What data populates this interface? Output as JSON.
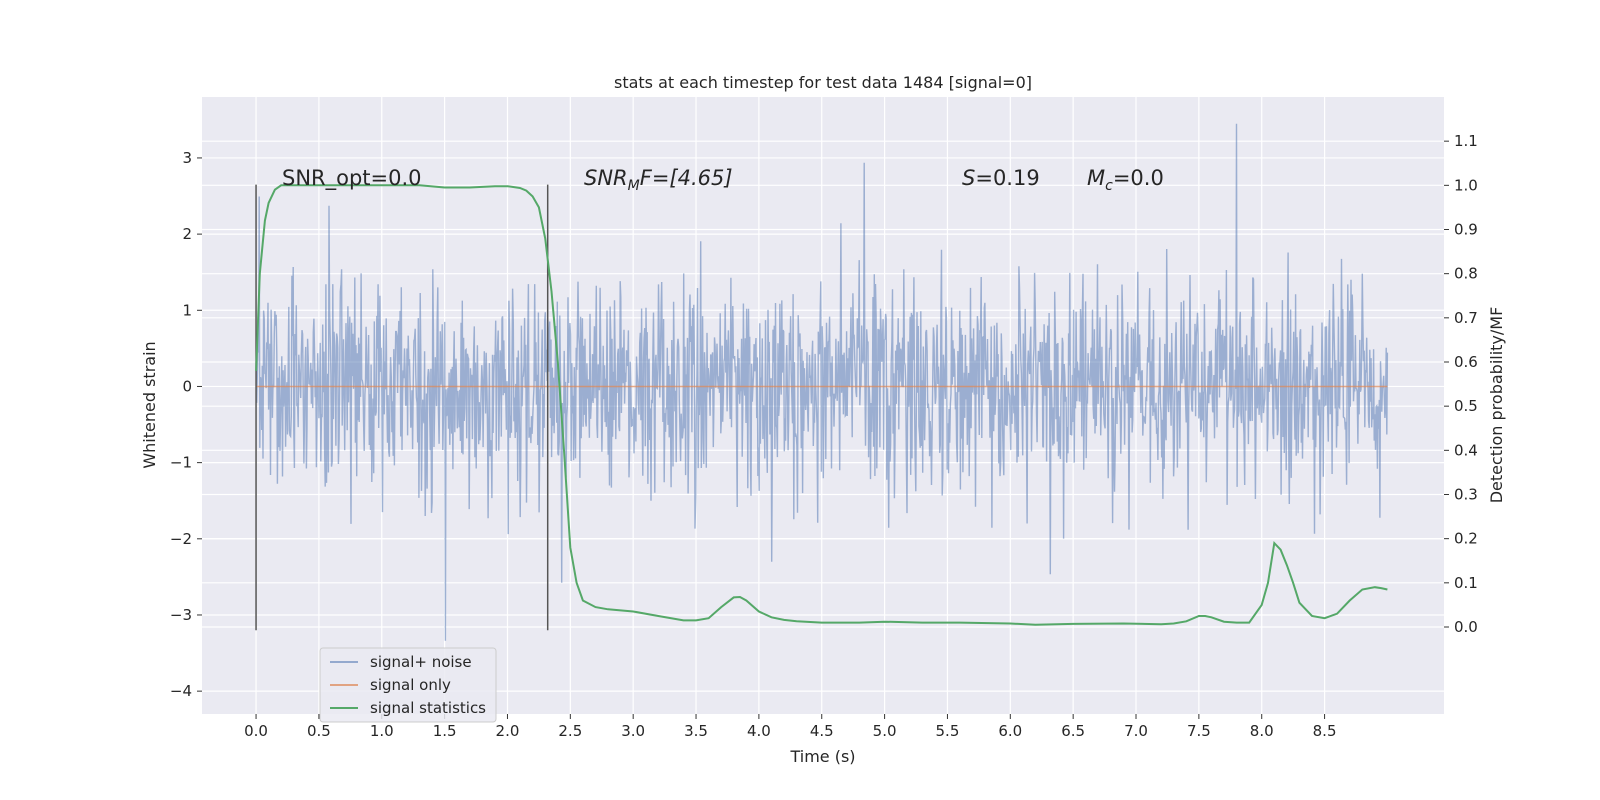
{
  "chart_data": {
    "type": "line",
    "title": "stats at each timestep for test data 1484 [signal=0]",
    "xlabel": "Time (s)",
    "ylabel": "Whitened strain",
    "y2label": "Detection probability/MF",
    "xlim": [
      -0.43,
      9.45
    ],
    "ylim": [
      -4.3,
      3.8
    ],
    "y2lim": [
      -0.197,
      1.2
    ],
    "xticks": [
      0.0,
      0.5,
      1.0,
      1.5,
      2.0,
      2.5,
      3.0,
      3.5,
      4.0,
      4.5,
      5.0,
      5.5,
      6.0,
      6.5,
      7.0,
      7.5,
      8.0,
      8.5
    ],
    "xtick_labels": [
      "0.0",
      "0.5",
      "1.0",
      "1.5",
      "2.0",
      "2.5",
      "3.0",
      "3.5",
      "4.0",
      "4.5",
      "5.0",
      "5.5",
      "6.0",
      "6.5",
      "7.0",
      "7.5",
      "8.0",
      "8.5"
    ],
    "yticks": [
      -4,
      -3,
      -2,
      -1,
      0,
      1,
      2,
      3
    ],
    "ytick_labels": [
      "−4",
      "−3",
      "−2",
      "−1",
      "0",
      "1",
      "2",
      "3"
    ],
    "y2ticks": [
      0.0,
      0.1,
      0.2,
      0.3,
      0.4,
      0.5,
      0.6,
      0.7,
      0.8,
      0.9,
      1.0,
      1.1
    ],
    "y2tick_labels": [
      "0.0",
      "0.1",
      "0.2",
      "0.3",
      "0.4",
      "0.5",
      "0.6",
      "0.7",
      "0.8",
      "0.9",
      "1.0",
      "1.1"
    ],
    "grid": true,
    "legend_position": "lower-left",
    "colors": {
      "background": "#eaeaf2",
      "grid": "#ffffff",
      "noise": "#4c72b0",
      "signal": "#dd8452",
      "stats": "#55a868",
      "vline": "#555555"
    },
    "annotations": {
      "snr_opt": "SNR_opt=0.0",
      "snr_mf_prefix": "SNR",
      "snr_mf_sub": "M",
      "snr_mf_rest": "F=[4.65]",
      "s_prefix": "S",
      "s_rest": "=0.19",
      "mc_prefix": "M",
      "mc_sub": "c",
      "mc_rest": "=0.0"
    },
    "vlines": [
      0.0,
      2.32
    ],
    "vline_range": [
      -3.2,
      2.65
    ],
    "noise": {
      "name": "signal+ noise",
      "x_range": [
        0.0,
        9.0
      ],
      "sample_count": 1800,
      "std": 0.68,
      "approx_range": [
        -3.8,
        3.45
      ]
    },
    "signal": {
      "name": "signal only",
      "x": [
        0.0,
        9.0
      ],
      "y": [
        0.0,
        0.0
      ]
    },
    "stats": {
      "name": "signal statistics",
      "x": [
        0.0,
        0.03,
        0.07,
        0.1,
        0.15,
        0.2,
        0.3,
        0.5,
        0.8,
        1.0,
        1.3,
        1.5,
        1.7,
        1.9,
        2.0,
        2.1,
        2.15,
        2.2,
        2.25,
        2.3,
        2.35,
        2.4,
        2.45,
        2.5,
        2.55,
        2.6,
        2.7,
        2.8,
        3.0,
        3.2,
        3.4,
        3.5,
        3.6,
        3.7,
        3.8,
        3.85,
        3.9,
        4.0,
        4.1,
        4.2,
        4.3,
        4.5,
        4.8,
        5.0,
        5.3,
        5.6,
        6.0,
        6.2,
        6.5,
        6.9,
        7.2,
        7.3,
        7.4,
        7.5,
        7.55,
        7.6,
        7.7,
        7.8,
        7.9,
        8.0,
        8.05,
        8.1,
        8.15,
        8.2,
        8.25,
        8.3,
        8.4,
        8.5,
        8.6,
        8.7,
        8.8,
        8.9,
        8.95,
        9.0
      ],
      "y": [
        0.58,
        0.8,
        0.92,
        0.96,
        0.99,
        1.0,
        1.0,
        1.0,
        1.0,
        1.0,
        1.0,
        0.995,
        0.995,
        0.998,
        0.998,
        0.994,
        0.988,
        0.975,
        0.95,
        0.88,
        0.76,
        0.6,
        0.4,
        0.18,
        0.1,
        0.06,
        0.045,
        0.04,
        0.035,
        0.025,
        0.015,
        0.015,
        0.02,
        0.045,
        0.067,
        0.068,
        0.06,
        0.035,
        0.022,
        0.016,
        0.013,
        0.01,
        0.01,
        0.012,
        0.01,
        0.01,
        0.008,
        0.005,
        0.007,
        0.008,
        0.006,
        0.008,
        0.013,
        0.025,
        0.025,
        0.022,
        0.012,
        0.01,
        0.01,
        0.05,
        0.1,
        0.19,
        0.175,
        0.14,
        0.1,
        0.055,
        0.025,
        0.02,
        0.03,
        0.06,
        0.085,
        0.09,
        0.088,
        0.085
      ]
    },
    "legend": [
      "signal+ noise",
      "signal only",
      "signal statistics"
    ]
  }
}
